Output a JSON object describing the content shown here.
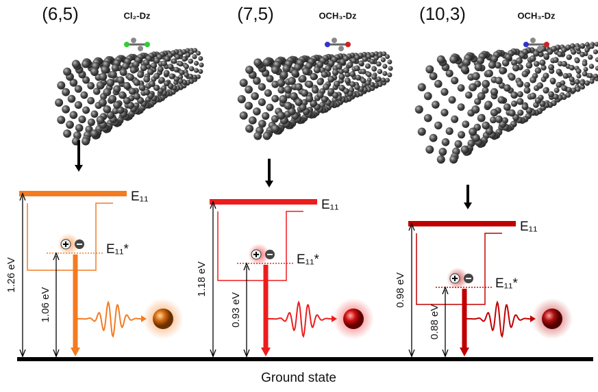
{
  "panels": [
    {
      "chirality": "(6,5)",
      "molecule": "Cl₂-Dz",
      "level": "E₁₁",
      "trap_level": "E₁₁*",
      "level_energy": "1.26 eV",
      "trap_energy": "1.06 eV"
    },
    {
      "chirality": "(7,5)",
      "molecule": "OCH₃-Dz",
      "level": "E₁₁",
      "trap_level": "E₁₁*",
      "level_energy": "1.18 eV",
      "trap_energy": "0.93 eV"
    },
    {
      "chirality": "(10,3)",
      "molecule": "OCH₃-Dz",
      "level": "E₁₁",
      "trap_level": "E₁₁*",
      "level_energy": "0.98 eV",
      "trap_energy": "0.88 eV"
    }
  ],
  "ground_state": "Ground state"
}
